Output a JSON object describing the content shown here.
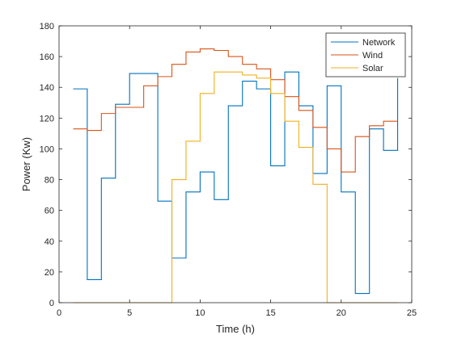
{
  "chart_data": {
    "type": "line",
    "style": "stairs",
    "title": "",
    "xlabel": "Time (h)",
    "ylabel": "Power (Kw)",
    "xlim": [
      0,
      25
    ],
    "ylim": [
      0,
      180
    ],
    "xticks": [
      0,
      5,
      10,
      15,
      20,
      25
    ],
    "yticks": [
      0,
      20,
      40,
      60,
      80,
      100,
      120,
      140,
      160,
      180
    ],
    "grid": false,
    "legend_position": "top-right",
    "x": [
      1,
      2,
      3,
      4,
      5,
      6,
      7,
      8,
      9,
      10,
      11,
      12,
      13,
      14,
      15,
      16,
      17,
      18,
      19,
      20,
      21,
      22,
      23,
      24
    ],
    "series": [
      {
        "name": "Network",
        "color": "#0072BD",
        "values": [
          139,
          15,
          81,
          129,
          149,
          149,
          66,
          29,
          72,
          85,
          67,
          128,
          144,
          139,
          89,
          150,
          128,
          84,
          141,
          72,
          6,
          113,
          99,
          146
        ]
      },
      {
        "name": "Wind",
        "color": "#D95319",
        "values": [
          113,
          112,
          123,
          127,
          127,
          141,
          147,
          155,
          163,
          165,
          164,
          160,
          155,
          152,
          145,
          134,
          125,
          114,
          100,
          85,
          108,
          115,
          118,
          118
        ]
      },
      {
        "name": "Solar",
        "color": "#EDB120",
        "values": [
          0,
          0,
          0,
          0,
          0,
          0,
          0,
          80,
          105,
          136,
          150,
          150,
          148,
          146,
          136,
          118,
          101,
          77,
          0,
          0,
          0,
          0,
          0,
          0
        ]
      }
    ]
  }
}
